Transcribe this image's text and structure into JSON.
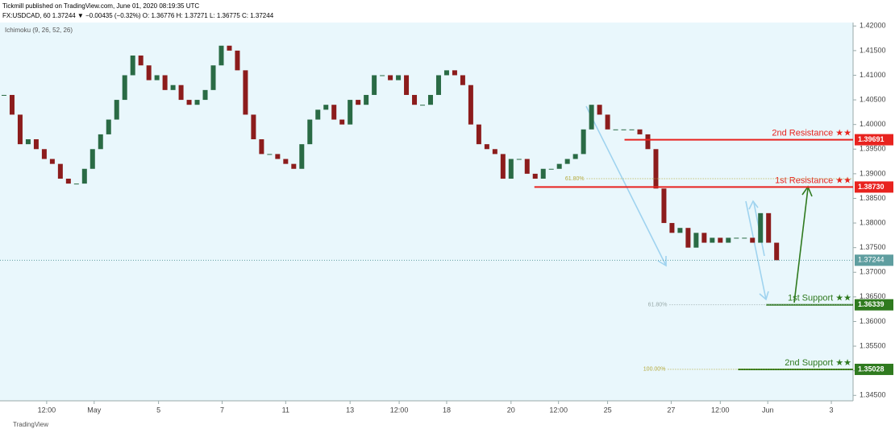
{
  "chart_data": {
    "type": "candlestick",
    "publisher": "Tickmill published on TradingView.com, June 01, 2020 08:19:35 UTC",
    "symbol_line": "FX:USDCAD, 60  1.37244 ▼ −0.00435 (−0.32%)  O: 1.36776  H: 1.37271  L: 1.36775  C: 1.37244",
    "indicator": "Ichimoku (9, 26, 52, 26)",
    "footer": "TradingView",
    "up_color": "#2a6b45",
    "down_color": "#8c1c1c",
    "values": [
      1.406,
      1.402,
      1.396,
      1.397,
      1.395,
      1.393,
      1.392,
      1.389,
      1.388,
      1.388,
      1.391,
      1.395,
      1.398,
      1.401,
      1.405,
      1.41,
      1.414,
      1.412,
      1.409,
      1.41,
      1.407,
      1.408,
      1.405,
      1.404,
      1.405,
      1.407,
      1.412,
      1.416,
      1.415,
      1.411,
      1.402,
      1.397,
      1.394,
      1.394,
      1.393,
      1.392,
      1.391,
      1.396,
      1.401,
      1.403,
      1.404,
      1.401,
      1.4,
      1.405,
      1.404,
      1.406,
      1.41,
      1.41,
      1.409,
      1.41,
      1.406,
      1.404,
      1.404,
      1.406,
      1.41,
      1.411,
      1.41,
      1.408,
      1.4,
      1.396,
      1.395,
      1.394,
      1.389,
      1.393,
      1.393,
      1.39,
      1.389,
      1.391,
      1.391,
      1.392,
      1.393,
      1.394,
      1.399,
      1.404,
      1.402,
      1.399,
      1.399,
      1.399,
      1.399,
      1.398,
      1.395,
      1.387,
      1.38,
      1.378,
      1.379,
      1.375,
      1.378,
      1.376,
      1.377,
      1.376,
      1.377,
      1.377,
      1.377,
      1.376,
      1.382,
      1.376,
      1.37244
    ],
    "xlim": [
      0,
      106
    ],
    "ylim": [
      1.3439,
      1.4207
    ],
    "xticks": [
      {
        "value": 5.8,
        "label": "12:00"
      },
      {
        "value": 11.7,
        "label": "May"
      },
      {
        "value": 19.7,
        "label": "5"
      },
      {
        "value": 27.6,
        "label": "7"
      },
      {
        "value": 35.5,
        "label": "11"
      },
      {
        "value": 43.5,
        "label": "13"
      },
      {
        "value": 49.6,
        "label": "12:00"
      },
      {
        "value": 55.5,
        "label": "18"
      },
      {
        "value": 63.5,
        "label": "20"
      },
      {
        "value": 69.4,
        "label": "12:00"
      },
      {
        "value": 75.5,
        "label": "25"
      },
      {
        "value": 83.4,
        "label": "27"
      },
      {
        "value": 89.5,
        "label": "12:00"
      },
      {
        "value": 95.4,
        "label": "Jun"
      },
      {
        "value": 103.3,
        "label": "3"
      }
    ],
    "yticks": [
      {
        "value": 1.345,
        "label": "1.34500"
      },
      {
        "value": 1.35,
        "label": "1.35000"
      },
      {
        "value": 1.355,
        "label": "1.35500"
      },
      {
        "value": 1.36,
        "label": "1.36000"
      },
      {
        "value": 1.365,
        "label": "1.36500"
      },
      {
        "value": 1.37,
        "label": "1.37000"
      },
      {
        "value": 1.375,
        "label": "1.37500"
      },
      {
        "value": 1.38,
        "label": "1.38000"
      },
      {
        "value": 1.385,
        "label": "1.38500"
      },
      {
        "value": 1.39,
        "label": "1.39000"
      },
      {
        "value": 1.395,
        "label": "1.39500"
      },
      {
        "value": 1.4,
        "label": "1.40000"
      },
      {
        "value": 1.405,
        "label": "1.40500"
      },
      {
        "value": 1.41,
        "label": "1.41000"
      },
      {
        "value": 1.415,
        "label": "1.41500"
      },
      {
        "value": 1.42,
        "label": "1.42000"
      }
    ],
    "last_price": {
      "value": 1.37244,
      "label": "1.37244",
      "color": "#5f9ea0"
    },
    "levels": [
      {
        "name": "2nd Resistance ★★",
        "value": 1.39691,
        "label": "1.39691",
        "color": "#e8231f",
        "from": 77.6
      },
      {
        "name": "1st Resistance ★★",
        "value": 1.3873,
        "label": "1.38730",
        "color": "#e8231f",
        "from": 66.4
      },
      {
        "name": "1st Support ★★",
        "value": 1.36339,
        "label": "1.36339",
        "color": "#2f7a1f",
        "from": 95.2
      },
      {
        "name": "2nd Support ★★",
        "value": 1.35028,
        "label": "1.35028",
        "color": "#2f7a1f",
        "from": 91.7
      }
    ],
    "fib_levels": [
      {
        "label": "61.80%",
        "value": 1.389,
        "from": 72.9,
        "color": "#b5a93a"
      },
      {
        "label": "61.80%",
        "value": 1.3634,
        "from": 83.2,
        "color": "#9aa"
      },
      {
        "label": "100.00%",
        "value": 1.3503,
        "from": 83.0,
        "color": "#b5a93a"
      }
    ]
  }
}
